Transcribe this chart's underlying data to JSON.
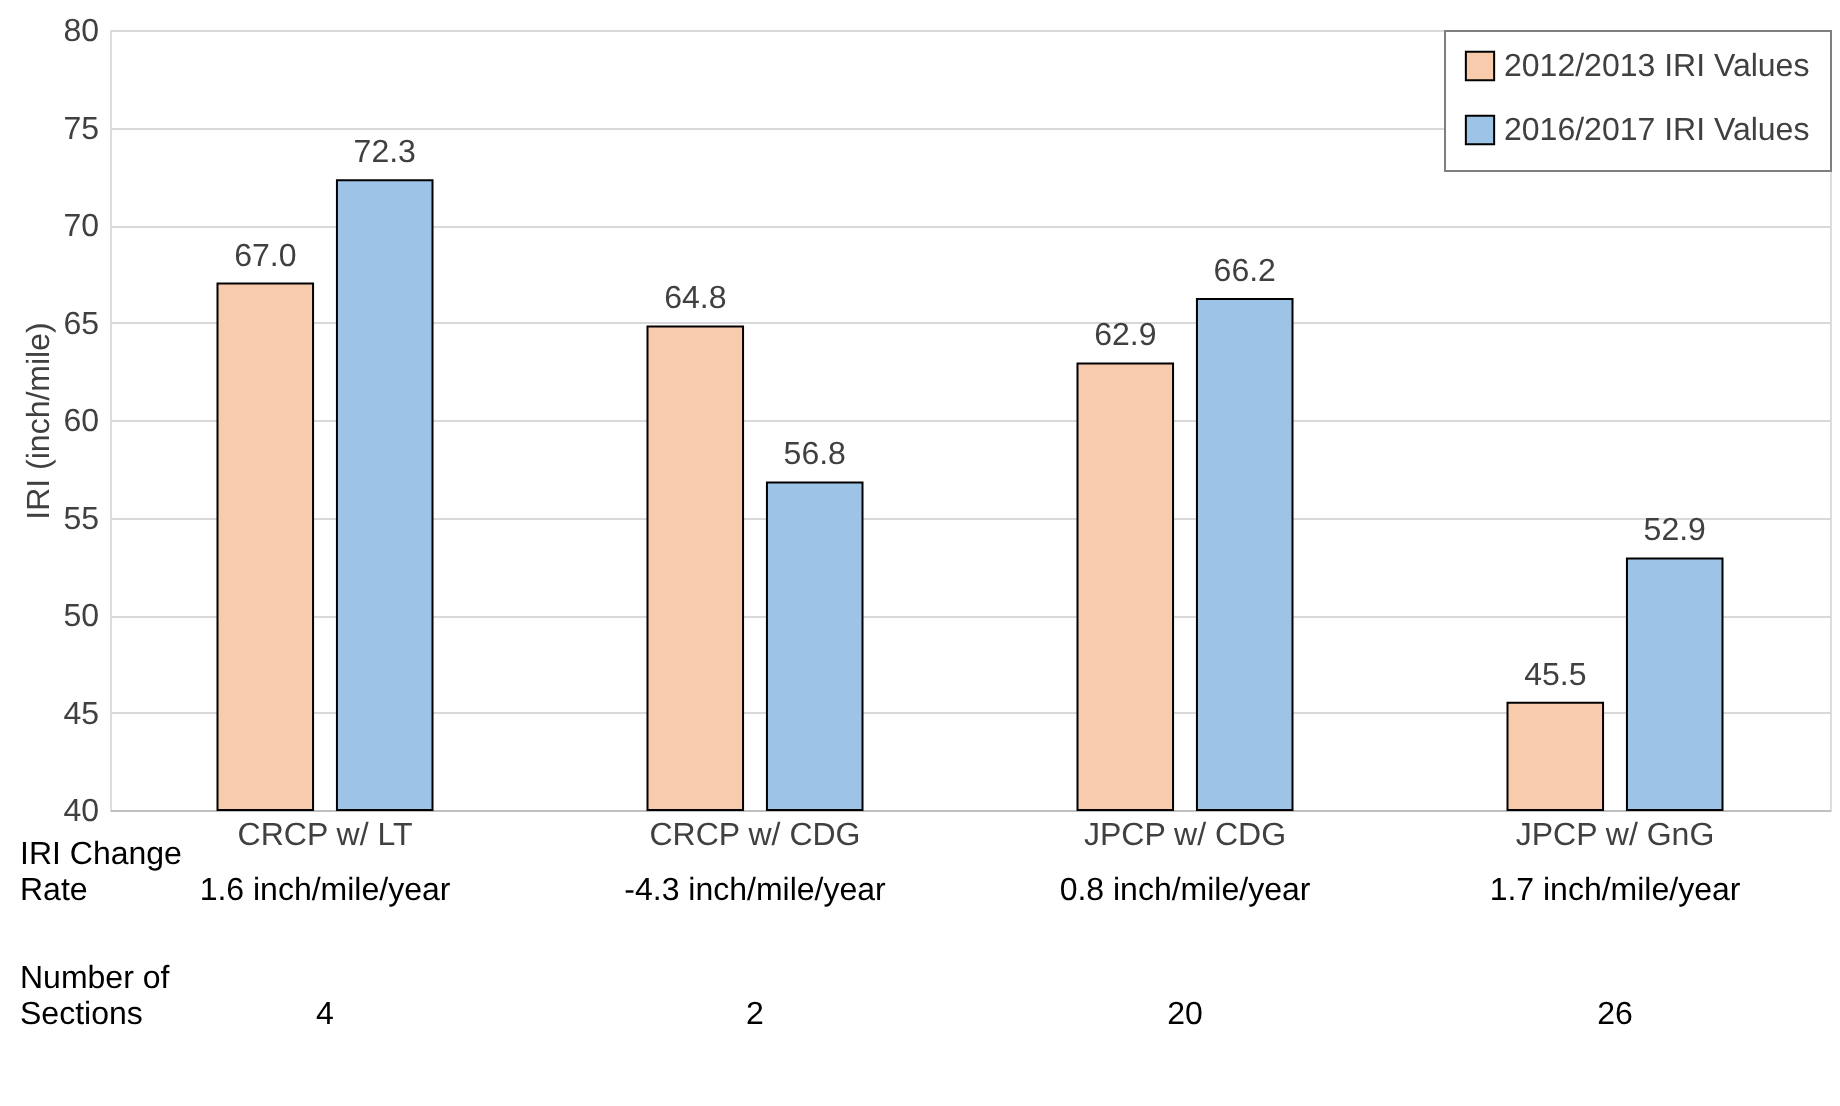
{
  "chart_data": {
    "type": "bar",
    "ylabel": "IRI (inch/mile)",
    "categories": [
      "CRCP w/ LT",
      "CRCP w/ CDG",
      "JPCP w/ CDG",
      "JPCP w/ GnG"
    ],
    "series": [
      {
        "name": "2012/2013 IRI Values",
        "color": "#f8cbad",
        "values": [
          67.0,
          64.8,
          62.9,
          45.5
        ],
        "value_labels": [
          "67.0",
          "64.8",
          "62.9",
          "45.5"
        ]
      },
      {
        "name": "2016/2017 IRI Values",
        "color": "#9dc3e6",
        "values": [
          72.3,
          56.8,
          66.2,
          52.9
        ],
        "value_labels": [
          "72.3",
          "56.8",
          "66.2",
          "52.9"
        ]
      }
    ],
    "ylim": [
      40,
      80
    ],
    "yticks": [
      40,
      45,
      50,
      55,
      60,
      65,
      70,
      75,
      80
    ],
    "grid": "y",
    "legend": "top right",
    "annotations": [
      "IRI Change\nRate",
      "1.6 inch/mile/year",
      "-4.3 inch/mile/year",
      "0.8 inch/mile/year",
      "1.7 inch/mile/year",
      "Number of\nSections",
      "4",
      "2",
      "20",
      "26"
    ]
  }
}
